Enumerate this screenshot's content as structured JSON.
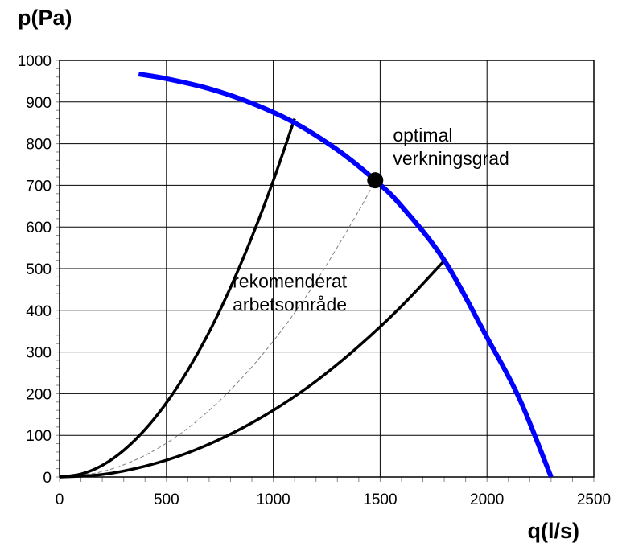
{
  "chart_data": {
    "type": "line",
    "title": "",
    "xlabel": "q(l/s)",
    "ylabel": "p(Pa)",
    "xlim": [
      0,
      2500
    ],
    "ylim": [
      0,
      1000
    ],
    "xticks": [
      0,
      500,
      1000,
      1500,
      2000,
      2500
    ],
    "yticks": [
      0,
      100,
      200,
      300,
      400,
      500,
      600,
      700,
      800,
      900,
      1000
    ],
    "x_minor_step": 100,
    "y_minor_step": 20,
    "grid": true,
    "series": [
      {
        "name": "",
        "role": "fan-curve",
        "color": "#0000ff",
        "style": "solid",
        "x": [
          370,
          500,
          700,
          900,
          1100,
          1300,
          1477,
          1600,
          1800,
          2000,
          2150,
          2300
        ],
        "y": [
          967,
          956,
          932,
          897,
          850,
          785,
          712,
          650,
          520,
          335,
          190,
          0
        ]
      },
      {
        "name": "",
        "role": "system-curve-upper",
        "color": "#000000",
        "style": "solid",
        "x": [
          0,
          100,
          200,
          300,
          400,
          500,
          600,
          700,
          800,
          900,
          1000,
          1100
        ],
        "y": [
          0,
          7,
          28,
          64,
          114,
          178,
          256,
          348,
          455,
          576,
          711,
          860
        ]
      },
      {
        "name": "",
        "role": "system-curve-optimal",
        "color": "#808080",
        "style": "dashed",
        "x": [
          0,
          200,
          400,
          600,
          800,
          1000,
          1200,
          1400,
          1477
        ],
        "y": [
          0,
          13,
          52,
          117,
          209,
          326,
          469,
          639,
          712
        ]
      },
      {
        "name": "",
        "role": "system-curve-lower",
        "color": "#000000",
        "style": "solid",
        "x": [
          0,
          200,
          400,
          600,
          800,
          1000,
          1200,
          1400,
          1600,
          1800
        ],
        "y": [
          0,
          6,
          26,
          58,
          103,
          160,
          230,
          314,
          410,
          519
        ]
      }
    ],
    "points": [
      {
        "x": 1477,
        "y": 712,
        "color": "#000000"
      }
    ],
    "annotations": [
      {
        "lines": [
          "optimal",
          "verkningsgrad"
        ],
        "x": 1560,
        "y": 805
      },
      {
        "lines": [
          "rekomenderat",
          "arbetsområde"
        ],
        "x": 810,
        "y": 455
      }
    ]
  }
}
